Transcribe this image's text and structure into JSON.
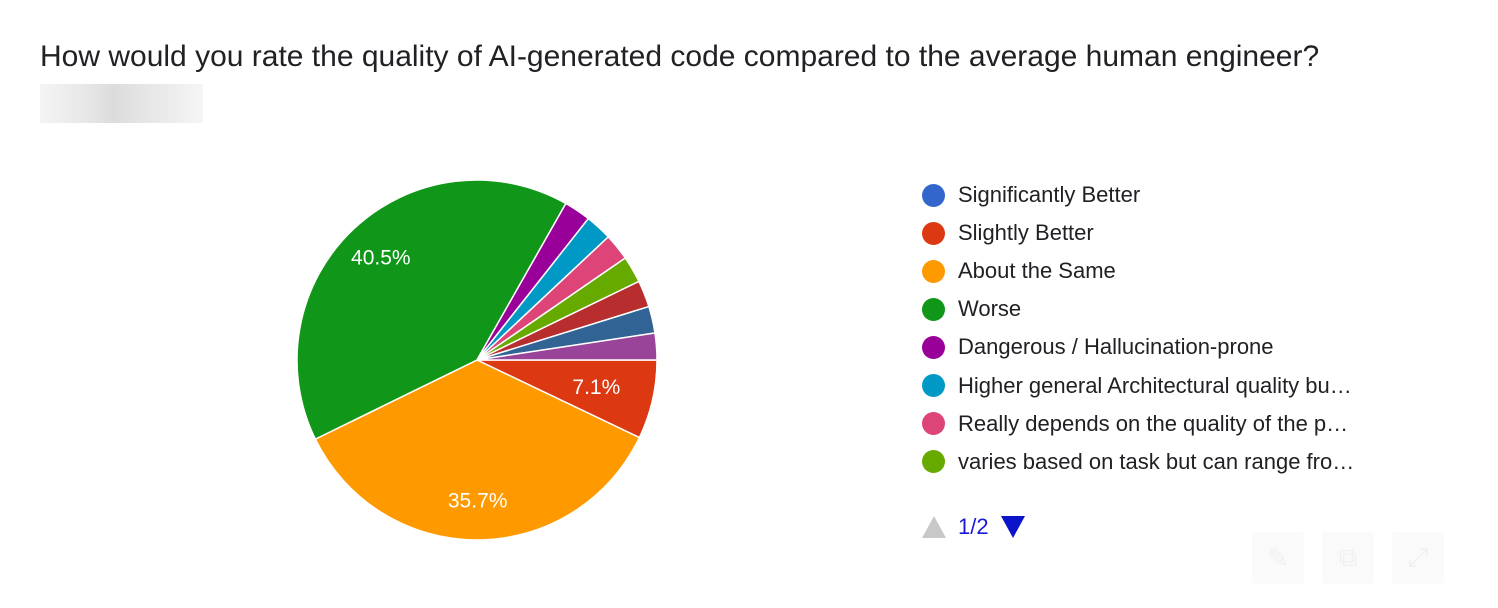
{
  "question": {
    "title": "How would you rate the quality of AI-generated code compared to the average human engineer?"
  },
  "chart_data": {
    "type": "pie",
    "slices": [
      {
        "label": "Significantly Better",
        "value": 0,
        "color": "#3366cc"
      },
      {
        "label": "Slightly Better",
        "value": 7.1,
        "color": "#dc3912"
      },
      {
        "label": "About the Same",
        "value": 35.7,
        "color": "#ff9900"
      },
      {
        "label": "Worse",
        "value": 40.5,
        "color": "#109618"
      },
      {
        "label": "Dangerous / Hallucination-prone",
        "value": 2.4,
        "color": "#990099"
      },
      {
        "label": "Higher general Architectural quality bu…",
        "value": 2.4,
        "color": "#0099c6"
      },
      {
        "label": "Really depends on the quality of the p…",
        "value": 2.4,
        "color": "#dd4477"
      },
      {
        "label": "varies based on task but can range fro…",
        "value": 2.4,
        "color": "#66aa00"
      },
      {
        "value": 2.4,
        "color": "#b82e2e"
      },
      {
        "value": 2.4,
        "color": "#316395"
      },
      {
        "value": 2.4,
        "color": "#994499"
      }
    ],
    "data_labels": [
      "",
      "7.1%",
      "35.7%",
      "40.5%",
      "",
      "",
      "",
      "",
      "",
      "",
      ""
    ],
    "legend_position": "right"
  },
  "legend": {
    "items": [
      {
        "label": "Significantly Better",
        "color": "#3366cc"
      },
      {
        "label": "Slightly Better",
        "color": "#dc3912"
      },
      {
        "label": "About the Same",
        "color": "#ff9900"
      },
      {
        "label": "Worse",
        "color": "#109618"
      },
      {
        "label": "Dangerous / Hallucination-prone",
        "color": "#990099"
      },
      {
        "label": "Higher general Architectural quality bu…",
        "color": "#0099c6"
      },
      {
        "label": "Really depends on the quality of the p…",
        "color": "#dd4477"
      },
      {
        "label": "varies based on task but can range fro…",
        "color": "#66aa00"
      }
    ]
  },
  "pager": {
    "page_text": "1/2"
  },
  "toolbar": {
    "icons": [
      "edit-icon",
      "copy-icon",
      "expand-icon"
    ]
  }
}
